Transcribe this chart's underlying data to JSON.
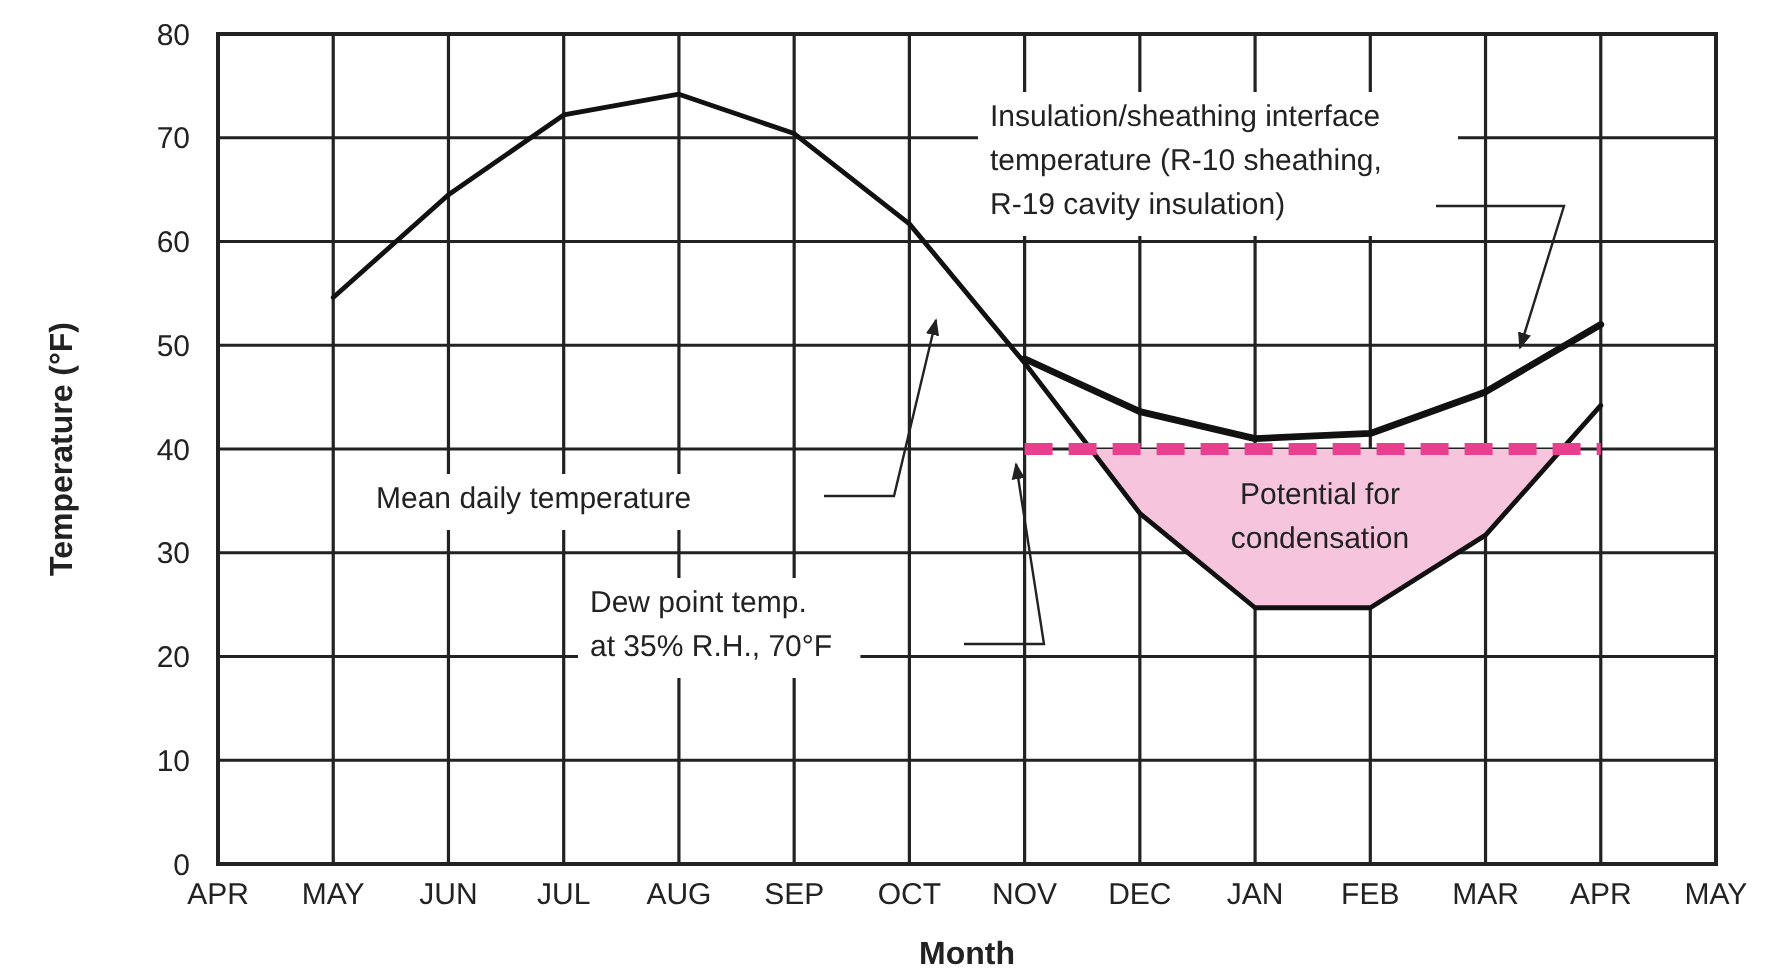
{
  "chart_data": {
    "type": "line",
    "xlabel": "Month",
    "ylabel": "Temperature (°F)",
    "categories": [
      "APR",
      "MAY",
      "JUN",
      "JUL",
      "AUG",
      "SEP",
      "OCT",
      "NOV",
      "DEC",
      "JAN",
      "FEB",
      "MAR",
      "APR",
      "MAY"
    ],
    "ylim": [
      0,
      80
    ],
    "yticks": [
      0,
      10,
      20,
      30,
      40,
      50,
      60,
      70,
      80
    ],
    "grid": true,
    "marker": "none",
    "series": [
      {
        "color": "#111111",
        "line_style": "solid",
        "values": [
          null,
          54.6,
          64.5,
          72.2,
          74.2,
          70.4,
          61.7,
          48.3,
          33.8,
          24.7,
          24.7,
          31.7,
          44.2,
          null
        ]
      },
      {
        "color": "#111111",
        "line_style": "solid",
        "values": [
          null,
          null,
          null,
          null,
          null,
          null,
          null,
          48.7,
          43.6,
          41,
          41.5,
          45.5,
          52,
          null
        ]
      },
      {
        "color": "#e8408f",
        "line_style": "dashed",
        "values": [
          null,
          null,
          null,
          null,
          null,
          null,
          null,
          40,
          40,
          40,
          40,
          40,
          40,
          null
        ]
      }
    ],
    "annotations": [
      "Mean daily temperature",
      "Insulation/sheathing interface\ntemperature (R-10 sheathing,\nR-19 cavity insulation)",
      "Dew point temp.\nat 35% R.H., 70°F",
      "Potential for\ncondensation"
    ]
  }
}
